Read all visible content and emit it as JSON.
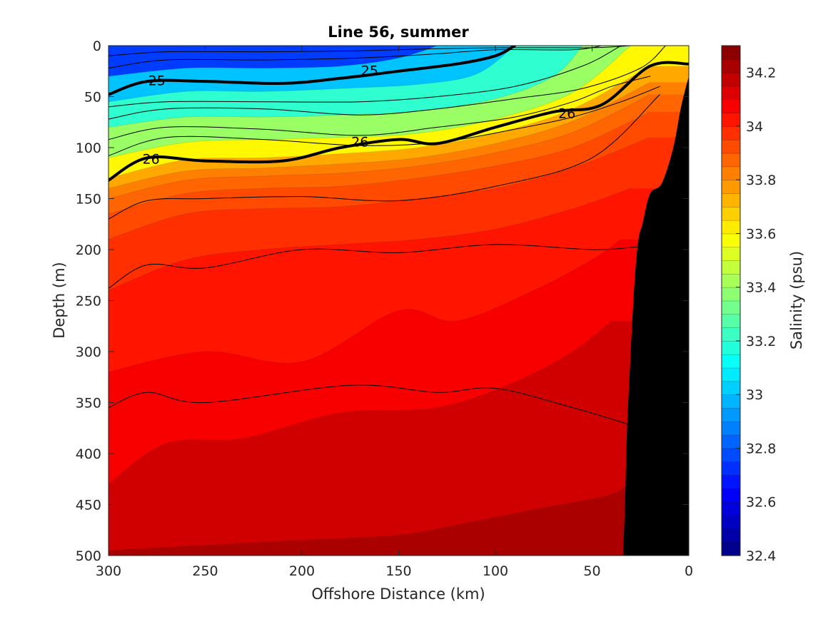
{
  "chart_data": {
    "type": "contour",
    "title": "Line 56, summer",
    "xlabel": "Offshore Distance (km)",
    "ylabel": "Depth (m)",
    "xlim": [
      300,
      0
    ],
    "ylim": [
      0,
      500
    ],
    "x_ticks": [
      "300",
      "250",
      "200",
      "150",
      "100",
      "50",
      "0"
    ],
    "y_ticks": [
      "0",
      "50",
      "100",
      "150",
      "200",
      "250",
      "300",
      "350",
      "400",
      "450",
      "500"
    ],
    "x_reversed": true,
    "y_reversed": true,
    "colorbar": {
      "label": "Salinity (psu)",
      "range": [
        32.4,
        34.3
      ],
      "levels": 38,
      "ticks": [
        "32.4",
        "32.6",
        "32.8",
        "33",
        "33.2",
        "33.4",
        "33.6",
        "33.8",
        "34",
        "34.2"
      ],
      "colormap": "jet"
    },
    "salinity_isohalines": [
      {
        "value": 34.2,
        "x": [
          300,
          250,
          200,
          150,
          120,
          80,
          40,
          30
        ],
        "depth": [
          495,
          490,
          485,
          480,
          470,
          455,
          440,
          425
        ]
      },
      {
        "value": 34.1,
        "x": [
          300,
          270,
          230,
          180,
          130,
          90,
          60,
          40
        ],
        "depth": [
          430,
          390,
          385,
          360,
          355,
          330,
          300,
          270
        ]
      },
      {
        "value": 34.05,
        "x": [
          300,
          250,
          200,
          150,
          120,
          80,
          50,
          35
        ],
        "depth": [
          320,
          300,
          310,
          260,
          270,
          240,
          210,
          190
        ]
      },
      {
        "value": 34.0,
        "x": [
          300,
          260,
          220,
          180,
          140,
          100,
          60,
          30
        ],
        "depth": [
          240,
          210,
          200,
          195,
          190,
          180,
          160,
          140
        ]
      },
      {
        "value": 33.95,
        "x": [
          300,
          260,
          220,
          180,
          140,
          100,
          60,
          20
        ],
        "depth": [
          190,
          165,
          160,
          158,
          150,
          140,
          120,
          90
        ]
      },
      {
        "value": 33.9,
        "x": [
          300,
          260,
          220,
          180,
          140,
          100,
          60,
          20
        ],
        "depth": [
          165,
          145,
          140,
          138,
          130,
          118,
          100,
          65
        ]
      },
      {
        "value": 33.85,
        "x": [
          300,
          260,
          220,
          180,
          140,
          100,
          60,
          20
        ],
        "depth": [
          150,
          132,
          128,
          125,
          118,
          105,
          85,
          48
        ]
      },
      {
        "value": 33.8,
        "x": [
          300,
          260,
          220,
          180,
          140,
          100,
          60,
          20
        ],
        "depth": [
          140,
          123,
          120,
          116,
          110,
          96,
          74,
          36
        ]
      },
      {
        "value": 33.7,
        "x": [
          300,
          260,
          220,
          180,
          140,
          100,
          60,
          20
        ],
        "depth": [
          130,
          112,
          110,
          106,
          100,
          86,
          62,
          20
        ]
      },
      {
        "value": 33.5,
        "x": [
          300,
          260,
          220,
          180,
          140,
          100,
          60,
          30
        ],
        "depth": [
          110,
          95,
          92,
          90,
          86,
          72,
          46,
          0
        ]
      },
      {
        "value": 33.3,
        "x": [
          300,
          260,
          220,
          180,
          140,
          100,
          70,
          55
        ],
        "depth": [
          80,
          70,
          70,
          68,
          64,
          52,
          30,
          0
        ]
      },
      {
        "value": 33.1,
        "x": [
          300,
          260,
          220,
          180,
          140,
          110,
          90
        ],
        "depth": [
          55,
          45,
          45,
          42,
          38,
          28,
          0
        ]
      },
      {
        "value": 32.9,
        "x": [
          300,
          260,
          220,
          180,
          150,
          130
        ],
        "depth": [
          30,
          22,
          22,
          20,
          12,
          0
        ]
      }
    ],
    "density_contours": [
      {
        "value": 25,
        "labeled": true,
        "x": [
          300,
          280,
          250,
          210,
          180,
          150,
          120,
          100,
          90
        ],
        "depth": [
          48,
          35,
          35,
          37,
          32,
          25,
          18,
          10,
          0
        ]
      },
      {
        "value": 26,
        "labeled": true,
        "x": [
          300,
          280,
          250,
          210,
          180,
          150,
          130,
          100,
          70,
          45,
          20,
          0
        ],
        "depth": [
          132,
          110,
          113,
          113,
          100,
          92,
          96,
          80,
          65,
          58,
          20,
          18
        ]
      },
      {
        "value": null,
        "labeled": false,
        "x": [
          300,
          280,
          250,
          200,
          150,
          100,
          50,
          25
        ],
        "depth": [
          238,
          215,
          218,
          200,
          203,
          195,
          200,
          197
        ]
      },
      {
        "value": null,
        "labeled": false,
        "x": [
          300,
          280,
          250,
          175,
          130,
          100,
          60,
          30
        ],
        "depth": [
          355,
          340,
          350,
          333,
          340,
          336,
          355,
          372
        ]
      },
      {
        "value": null,
        "labeled": false,
        "x": [
          300,
          280,
          250,
          200,
          150,
          100,
          50,
          15
        ],
        "depth": [
          170,
          152,
          150,
          148,
          152,
          138,
          110,
          48
        ]
      },
      {
        "value": null,
        "labeled": false,
        "x": [
          300,
          270,
          220,
          170,
          130,
          90,
          50,
          30
        ],
        "depth": [
          10,
          6,
          6,
          5,
          3,
          2,
          2,
          0
        ]
      },
      {
        "value": null,
        "labeled": false,
        "x": [
          300,
          270,
          220,
          170,
          130,
          100,
          60,
          45
        ],
        "depth": [
          22,
          14,
          14,
          12,
          8,
          4,
          4,
          0
        ]
      },
      {
        "value": null,
        "labeled": false,
        "x": [
          300,
          270,
          220,
          170,
          130,
          90,
          55,
          35
        ],
        "depth": [
          60,
          55,
          55,
          55,
          50,
          40,
          20,
          0
        ]
      },
      {
        "value": null,
        "labeled": false,
        "x": [
          300,
          270,
          220,
          170,
          130,
          90,
          55,
          25,
          12
        ],
        "depth": [
          72,
          62,
          62,
          68,
          62,
          52,
          42,
          22,
          0
        ]
      },
      {
        "value": null,
        "labeled": false,
        "x": [
          300,
          270,
          220,
          170,
          130,
          90,
          60,
          40,
          20
        ],
        "depth": [
          92,
          80,
          82,
          88,
          80,
          70,
          55,
          40,
          30
        ]
      },
      {
        "value": null,
        "labeled": false,
        "x": [
          300,
          270,
          220,
          170,
          130,
          90,
          60,
          35,
          15
        ],
        "depth": [
          108,
          90,
          92,
          98,
          95,
          82,
          70,
          55,
          40
        ]
      }
    ],
    "contour_labels": [
      {
        "text": "25",
        "x": 275,
        "depth": 34
      },
      {
        "text": "25",
        "x": 165,
        "depth": 24
      },
      {
        "text": "26",
        "x": 278,
        "depth": 111
      },
      {
        "text": "26",
        "x": 170,
        "depth": 94
      },
      {
        "text": "26",
        "x": 63,
        "depth": 66
      }
    ],
    "bathymetry": {
      "x": [
        0,
        4,
        8,
        14,
        20,
        24,
        26,
        28,
        30,
        32,
        33,
        34,
        0
      ],
      "depth": [
        30,
        60,
        100,
        135,
        145,
        175,
        190,
        230,
        300,
        380,
        450,
        500,
        500
      ]
    }
  }
}
